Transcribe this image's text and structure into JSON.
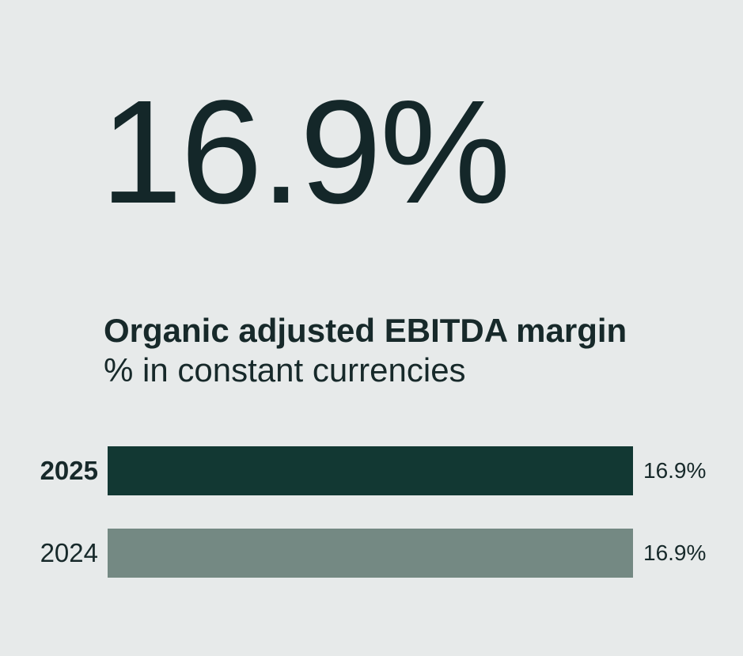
{
  "page": {
    "background_color": "#e7eaea",
    "text_color": "#17292a"
  },
  "headline": {
    "value": "16.9%"
  },
  "chart_data": {
    "type": "bar",
    "orientation": "horizontal",
    "title": "Organic adjusted EBITDA margin",
    "subtitle": "% in constant currencies",
    "categories": [
      "2025",
      "2024"
    ],
    "values": [
      16.9,
      16.9
    ],
    "value_labels": [
      "16.9%",
      "16.9%"
    ],
    "bar_colors": [
      "#123833",
      "#748983"
    ],
    "xlim": [
      0,
      16.9
    ],
    "emphasized_category": "2025",
    "grid": false,
    "legend": false
  }
}
